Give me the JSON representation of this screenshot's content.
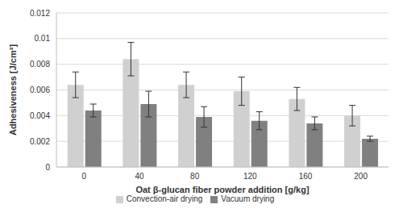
{
  "chart_data": {
    "type": "bar",
    "x_label": "Oat β-glucan fiber powder addition [g/kg]",
    "y_label": "Adhesiveness [J/cm²]",
    "categories": [
      "0",
      "40",
      "80",
      "120",
      "160",
      "200"
    ],
    "series": [
      {
        "name": "Convection-air drying",
        "color": "#d0d0d0",
        "values": [
          0.0064,
          0.0084,
          0.0064,
          0.0059,
          0.0053,
          0.004
        ],
        "errors": [
          0.001,
          0.0013,
          0.001,
          0.0011,
          0.0009,
          0.0008
        ]
      },
      {
        "name": "Vacuum drying",
        "color": "#808080",
        "values": [
          0.0044,
          0.0049,
          0.0039,
          0.0036,
          0.0034,
          0.0022
        ],
        "errors": [
          0.0005,
          0.001,
          0.0008,
          0.0007,
          0.0005,
          0.0002
        ]
      }
    ],
    "ylim": [
      0,
      0.012
    ],
    "yticks": [
      0,
      0.002,
      0.004,
      0.006,
      0.008,
      0.01,
      0.012
    ],
    "grid": true,
    "legend": "bottom"
  }
}
